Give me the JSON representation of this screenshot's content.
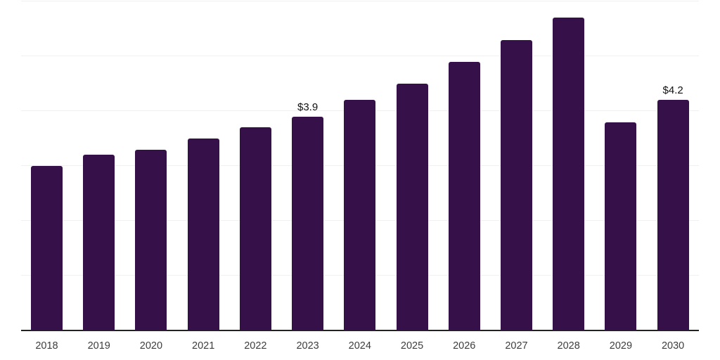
{
  "chart_data": {
    "type": "bar",
    "title": "",
    "xlabel": "",
    "ylabel": "",
    "categories": [
      "2018",
      "2019",
      "2020",
      "2021",
      "2022",
      "2023",
      "2024",
      "2025",
      "2026",
      "2027",
      "2028",
      "2029",
      "2030"
    ],
    "values": [
      3.0,
      3.2,
      3.3,
      3.5,
      3.7,
      3.9,
      4.2,
      4.5,
      4.9,
      5.3,
      5.7,
      3.8,
      4.2
    ],
    "data_labels": [
      "",
      "",
      "",
      "",
      "",
      "$3.9",
      "",
      "",
      "",
      "",
      "",
      "",
      "$4.2"
    ],
    "ylim": [
      0,
      6
    ],
    "grid_values": [
      1,
      2,
      3,
      4,
      5,
      6
    ],
    "grid": "horizontal",
    "legend": false,
    "y_tick_labels_visible": false,
    "colors": {
      "bar": "#351049",
      "grid": "#f0f0f2",
      "axis_line": "#222222",
      "tick_label": "#3d3d3d",
      "data_label": "#111111",
      "background": "#ffffff"
    }
  }
}
